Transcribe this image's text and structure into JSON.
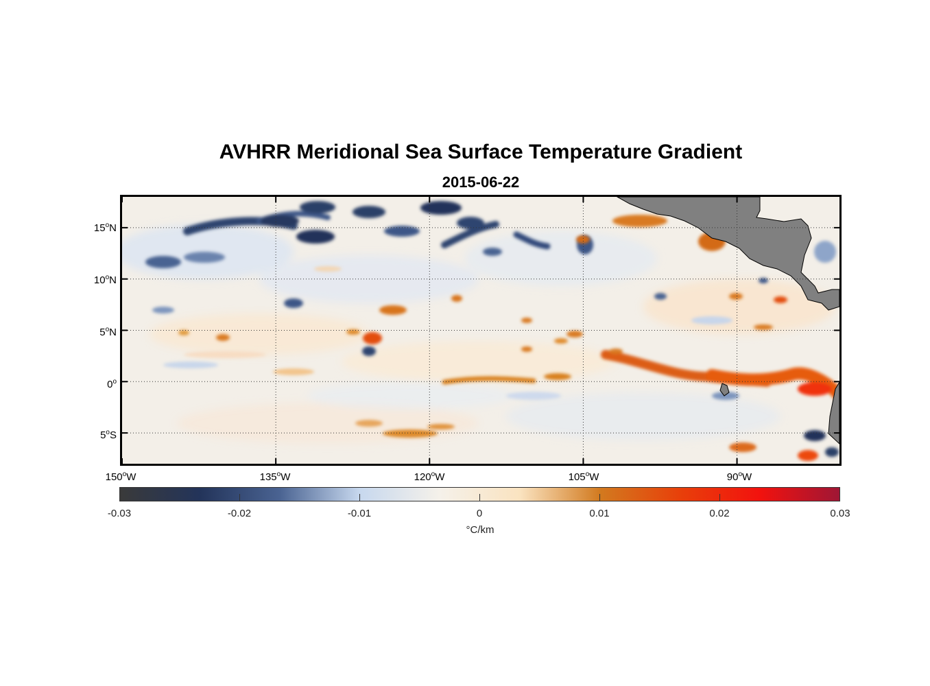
{
  "figure": {
    "title": "AVHRR Meridional Sea Surface Temperature Gradient",
    "subtitle": "2015-06-22"
  },
  "map": {
    "lat_labels": [
      {
        "deg": "15",
        "hemi": "N"
      },
      {
        "deg": "10",
        "hemi": "N"
      },
      {
        "deg": "5",
        "hemi": "N"
      },
      {
        "deg": "0",
        "hemi": ""
      },
      {
        "deg": "5",
        "hemi": "S"
      }
    ],
    "lon_labels": [
      {
        "deg": "150",
        "hemi": "W"
      },
      {
        "deg": "135",
        "hemi": "W"
      },
      {
        "deg": "120",
        "hemi": "W"
      },
      {
        "deg": "105",
        "hemi": "W"
      },
      {
        "deg": "90",
        "hemi": "W"
      }
    ],
    "extent": {
      "lon_min": -150,
      "lon_max": -80,
      "lat_min": -8,
      "lat_max": 18
    },
    "gridlines": true,
    "land_color": "#808080",
    "ocean_neutral_color": "#f3efe8"
  },
  "colorbar": {
    "ticks": [
      "-0.03",
      "-0.02",
      "-0.01",
      "0",
      "0.01",
      "0.02",
      "0.03"
    ],
    "unit_label": "°C/km",
    "range": [
      -0.03,
      0.03
    ],
    "colors": [
      "#3a3a3a",
      "#23345a",
      "#4a6392",
      "#c7d8ee",
      "#f5f1ea",
      "#fae3c0",
      "#d27a1f",
      "#e8400a",
      "#f2120e",
      "#9f1635"
    ]
  }
}
